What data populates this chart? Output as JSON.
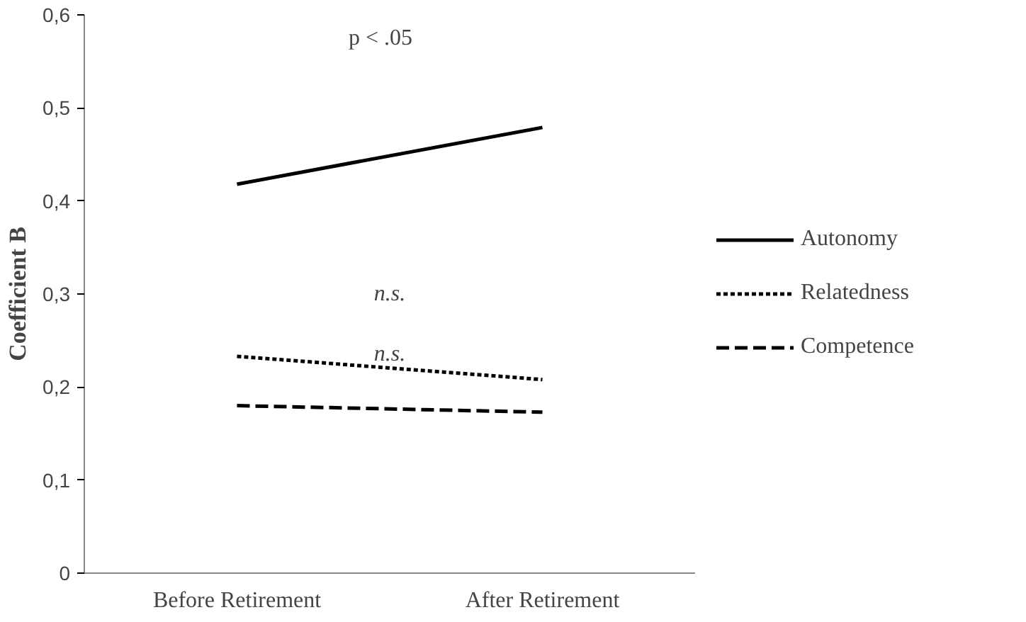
{
  "chart_data": {
    "type": "line",
    "ylabel": "Coefficient B",
    "categories": [
      "Before Retirement",
      "After Retirement"
    ],
    "series": [
      {
        "name": "Autonomy",
        "color": "#000000",
        "line_style": "solid",
        "values": [
          0.418,
          0.479
        ]
      },
      {
        "name": "Relatedness",
        "color": "#000000",
        "line_style": "dotted",
        "values": [
          0.233,
          0.208
        ]
      },
      {
        "name": "Competence",
        "color": "#000000",
        "line_style": "dashed",
        "values": [
          0.18,
          0.173
        ]
      }
    ],
    "ylim": [
      0,
      0.6
    ],
    "yticks": [
      0,
      {
        "value": 0.1,
        "label": "0,1"
      },
      {
        "value": 0.2,
        "label": "0,2"
      },
      {
        "value": 0.3,
        "label": "0,3"
      },
      {
        "value": 0.4,
        "label": "0,4"
      },
      {
        "value": 0.5,
        "label": "0,5"
      },
      {
        "value": 0.6,
        "label": "0,6"
      }
    ],
    "annotations": [
      "p < .05",
      "n.s.",
      "n.s."
    ],
    "grid": false,
    "legend": "right",
    "marker": "none"
  }
}
